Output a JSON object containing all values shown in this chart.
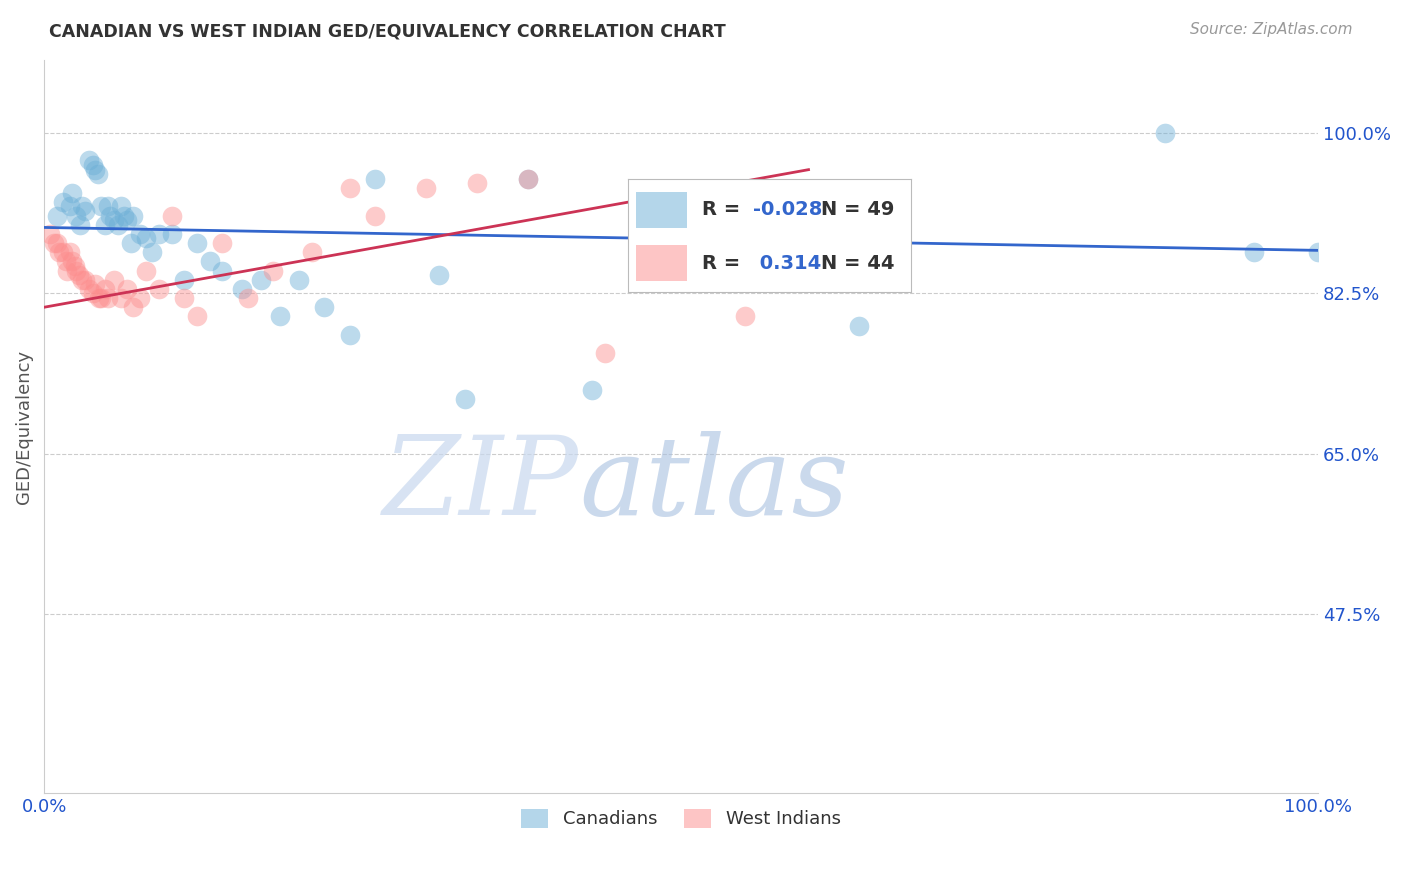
{
  "title": "CANADIAN VS WEST INDIAN GED/EQUIVALENCY CORRELATION CHART",
  "source": "Source: ZipAtlas.com",
  "ylabel": "GED/Equivalency",
  "xlim": [
    0.0,
    1.0
  ],
  "ylim": [
    0.28,
    1.08
  ],
  "yticks": [
    0.475,
    0.65,
    0.825,
    1.0
  ],
  "ytick_labels": [
    "47.5%",
    "65.0%",
    "82.5%",
    "100.0%"
  ],
  "xticks": [
    0.0,
    0.1,
    0.2,
    0.3,
    0.4,
    0.5,
    0.6,
    0.7,
    0.8,
    0.9,
    1.0
  ],
  "xtick_labels": [
    "0.0%",
    "",
    "",
    "",
    "",
    "",
    "",
    "",
    "",
    "",
    "100.0%"
  ],
  "canadian_color": "#6baed6",
  "west_indian_color": "#fc8d8d",
  "canadian_R": -0.028,
  "canadian_N": 49,
  "west_indian_R": 0.314,
  "west_indian_N": 44,
  "canadians_x": [
    0.01,
    0.015,
    0.02,
    0.022,
    0.025,
    0.028,
    0.03,
    0.032,
    0.035,
    0.038,
    0.04,
    0.042,
    0.045,
    0.048,
    0.05,
    0.052,
    0.055,
    0.058,
    0.06,
    0.063,
    0.065,
    0.068,
    0.07,
    0.075,
    0.08,
    0.085,
    0.09,
    0.1,
    0.11,
    0.12,
    0.13,
    0.14,
    0.155,
    0.17,
    0.185,
    0.2,
    0.22,
    0.24,
    0.26,
    0.31,
    0.33,
    0.38,
    0.43,
    0.5,
    0.62,
    0.64,
    0.88,
    0.95,
    1.0
  ],
  "canadians_y": [
    0.91,
    0.925,
    0.92,
    0.935,
    0.91,
    0.9,
    0.92,
    0.915,
    0.97,
    0.965,
    0.96,
    0.955,
    0.92,
    0.9,
    0.92,
    0.91,
    0.905,
    0.9,
    0.92,
    0.91,
    0.905,
    0.88,
    0.91,
    0.89,
    0.885,
    0.87,
    0.89,
    0.89,
    0.84,
    0.88,
    0.86,
    0.85,
    0.83,
    0.84,
    0.8,
    0.84,
    0.81,
    0.78,
    0.95,
    0.845,
    0.71,
    0.95,
    0.72,
    0.84,
    0.93,
    0.79,
    1.0,
    0.87,
    0.87
  ],
  "west_indians_x": [
    0.005,
    0.008,
    0.01,
    0.012,
    0.015,
    0.017,
    0.018,
    0.02,
    0.022,
    0.024,
    0.025,
    0.027,
    0.03,
    0.032,
    0.035,
    0.038,
    0.04,
    0.043,
    0.045,
    0.048,
    0.05,
    0.055,
    0.06,
    0.065,
    0.07,
    0.075,
    0.08,
    0.09,
    0.1,
    0.11,
    0.12,
    0.14,
    0.16,
    0.18,
    0.21,
    0.24,
    0.26,
    0.3,
    0.34,
    0.38,
    0.44,
    0.49,
    0.55,
    0.6
  ],
  "west_indians_y": [
    0.89,
    0.88,
    0.88,
    0.87,
    0.87,
    0.86,
    0.85,
    0.87,
    0.86,
    0.855,
    0.85,
    0.845,
    0.84,
    0.84,
    0.83,
    0.825,
    0.835,
    0.82,
    0.82,
    0.83,
    0.82,
    0.84,
    0.82,
    0.83,
    0.81,
    0.82,
    0.85,
    0.83,
    0.91,
    0.82,
    0.8,
    0.88,
    0.82,
    0.85,
    0.87,
    0.94,
    0.91,
    0.94,
    0.945,
    0.95,
    0.76,
    0.85,
    0.8,
    0.84
  ],
  "canadian_line_x": [
    0.0,
    1.0
  ],
  "canadian_line_y": [
    0.897,
    0.872
  ],
  "west_indian_line_x": [
    0.0,
    0.6
  ],
  "west_indian_line_y": [
    0.81,
    0.96
  ],
  "watermark_zip": "ZIP",
  "watermark_atlas": "atlas",
  "background_color": "#ffffff",
  "grid_color": "#cccccc",
  "title_color": "#333333",
  "axis_label_color": "#555555",
  "tick_label_color": "#2255cc",
  "canadian_line_color": "#3366cc",
  "west_indian_line_color": "#cc3355"
}
